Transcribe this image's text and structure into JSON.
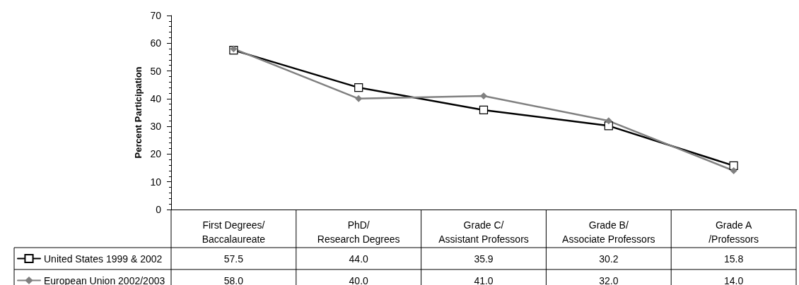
{
  "chart_data": {
    "type": "line",
    "ylabel": "Percent Participation",
    "categories": [
      "First Degrees/\nBaccalaureate",
      "PhD/\nResearch Degrees",
      "Grade C/\nAssistant Professors",
      "Grade B/\nAssociate Professors",
      "Grade A\n/Professors"
    ],
    "series": [
      {
        "name": "United States 1999 & 2002",
        "color": "#000000",
        "marker": "square",
        "values": [
          57.5,
          44.0,
          35.9,
          30.2,
          15.8
        ],
        "value_labels": [
          "57.5",
          "44.0",
          "35.9",
          "30.2",
          "15.8"
        ]
      },
      {
        "name": "European Union 2002/2003",
        "color": "#808080",
        "marker": "diamond",
        "values": [
          58.0,
          40.0,
          41.0,
          32.0,
          14.0
        ],
        "value_labels": [
          "58.0",
          "40.0",
          "41.0",
          "32.0",
          "14.0"
        ]
      }
    ],
    "ylim": [
      0,
      70
    ],
    "yticks": [
      0,
      10,
      20,
      30,
      40,
      50,
      60,
      70
    ],
    "grid": false,
    "legend": "bottom left",
    "line_style": "solid"
  }
}
